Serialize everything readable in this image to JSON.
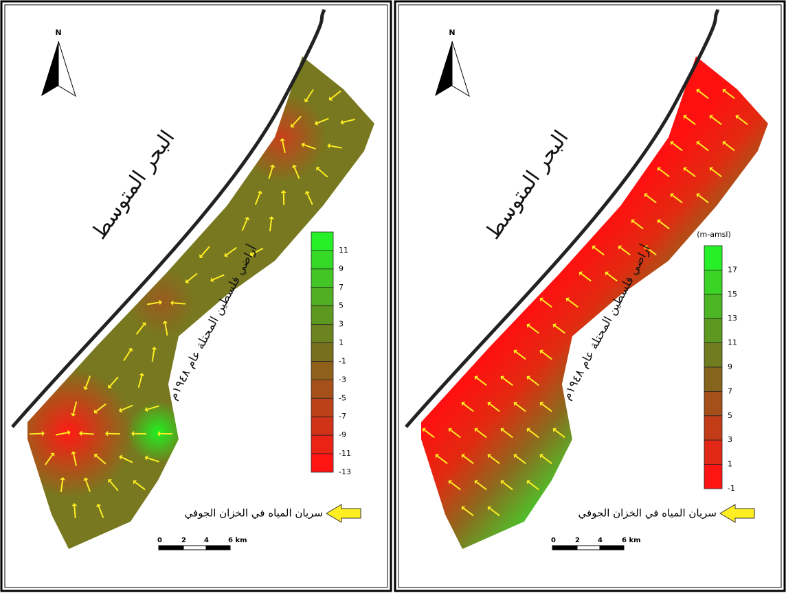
{
  "panels": [
    {
      "north": "N",
      "sea_label": "البحر المتوسط",
      "land_label": "أراضي فلسطين المحتلة عام ١٩٤٨م",
      "legend_ticks": [
        11,
        9,
        7,
        5,
        3,
        1,
        -1,
        -3,
        -5,
        -7,
        -9,
        -11,
        -13
      ],
      "flow_legend": "سريان المياه في الخزان الجوفي",
      "scale": [
        "0",
        "2",
        "4",
        "6 km"
      ]
    },
    {
      "north": "N",
      "sea_label": "البحر المتوسط",
      "land_label": "أراضي فلسطين المحتلة عام ١٩٤٨م",
      "legend_unit": "(m-amsl)",
      "legend_ticks": [
        17,
        15,
        13,
        11,
        9,
        7,
        5,
        3,
        1,
        -1
      ],
      "flow_legend": "سريان المياه في الخزان الجوفي",
      "scale": [
        "0",
        "2",
        "4",
        "6 km"
      ]
    }
  ]
}
